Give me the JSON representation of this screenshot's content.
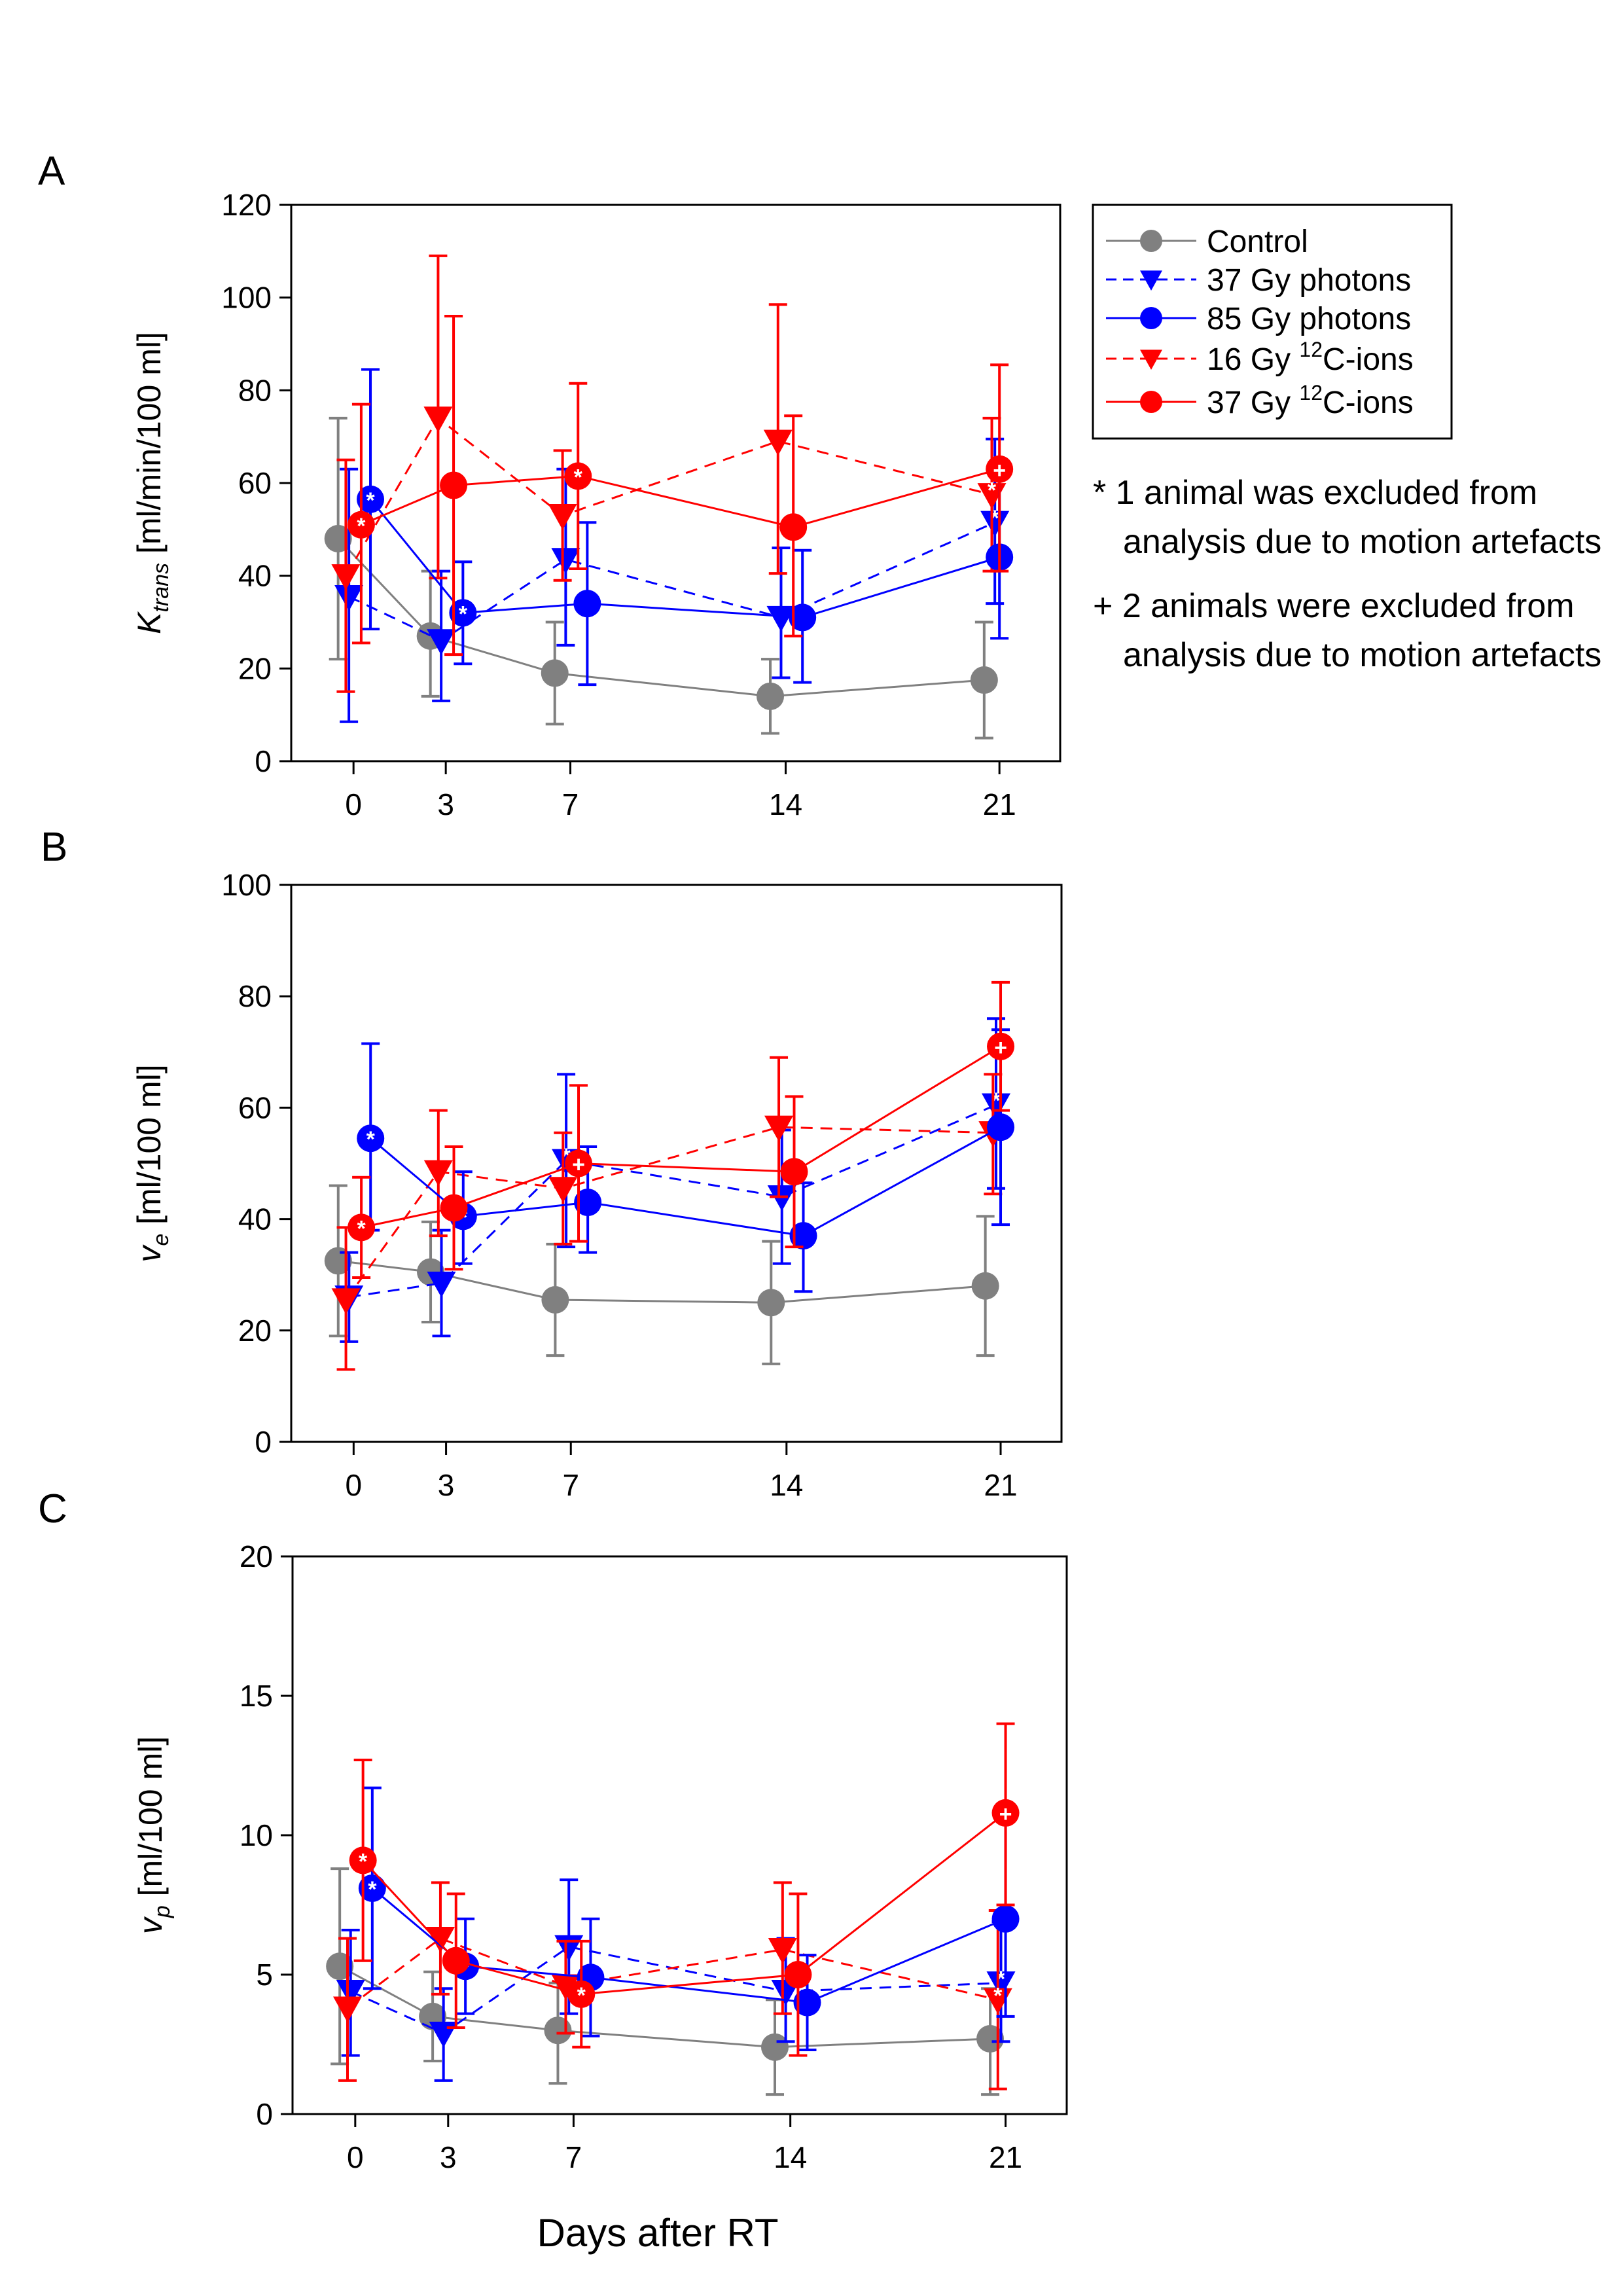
{
  "chart_data": [
    {
      "type": "line",
      "panel_label": "A",
      "ylabel_main": "K",
      "ylabel_sub": "trans",
      "ylabel_rest": "[ml/min/100 ml]",
      "ylim": [
        0,
        120
      ],
      "yticks": [
        "0",
        "20",
        "40",
        "60",
        "80",
        "100",
        "120"
      ],
      "x": [
        0,
        3,
        7,
        14,
        21
      ],
      "xticks": [
        "0",
        "3",
        "7",
        "14",
        "21"
      ],
      "series": [
        {
          "name": "Control",
          "offset": -0.5,
          "values": [
            48,
            27,
            19,
            14,
            17.5
          ],
          "err_high": [
            74,
            41,
            30,
            22,
            30
          ],
          "err_low": [
            22,
            14,
            8,
            6,
            5
          ],
          "marks": [
            "",
            "",
            "",
            "",
            ""
          ]
        },
        {
          "name": "37 Gy photons",
          "offset": -0.15,
          "values": [
            35.5,
            26,
            43.5,
            31,
            51.5
          ],
          "err_high": [
            63,
            41,
            63,
            46,
            69.5
          ],
          "err_low": [
            8.5,
            13,
            25,
            18,
            34
          ],
          "marks": [
            "",
            "",
            "",
            "",
            "*"
          ]
        },
        {
          "name": "85 Gy photons",
          "offset": 0.55,
          "values": [
            56.5,
            32,
            34,
            31,
            44
          ],
          "err_high": [
            84.5,
            43,
            51.5,
            45.5,
            62
          ],
          "err_low": [
            28.5,
            21,
            16.5,
            17,
            26.5
          ],
          "marks": [
            "*",
            "*",
            "",
            "",
            ""
          ]
        },
        {
          "name": "16 Gy 12C-ions",
          "offset": -0.25,
          "values": [
            40,
            74,
            53,
            69,
            57.5
          ],
          "err_high": [
            65,
            109,
            67,
            98.5,
            74
          ],
          "err_low": [
            15,
            39.5,
            39,
            40.5,
            41
          ],
          "marks": [
            "",
            "",
            "",
            "",
            "*"
          ]
        },
        {
          "name": "37 Gy 12C-ions",
          "offset": 0.25,
          "values": [
            51,
            59.5,
            61.5,
            50.5,
            63
          ],
          "err_high": [
            77,
            96,
            81.5,
            74.5,
            85.5
          ],
          "err_low": [
            25.5,
            23,
            41.5,
            27,
            41
          ],
          "marks": [
            "*",
            "",
            "*",
            "",
            "+"
          ]
        }
      ]
    },
    {
      "type": "line",
      "panel_label": "B",
      "ylabel_main": "v",
      "ylabel_sub": "e",
      "ylabel_rest": "[ml/100 ml]",
      "ylim": [
        0,
        100
      ],
      "yticks": [
        "0",
        "20",
        "40",
        "60",
        "80",
        "100"
      ],
      "x": [
        0,
        3,
        7,
        14,
        21
      ],
      "xticks": [
        "0",
        "3",
        "7",
        "14",
        "21"
      ],
      "series": [
        {
          "name": "Control",
          "offset": -0.5,
          "values": [
            32.5,
            30.5,
            25.5,
            25,
            28
          ],
          "err_high": [
            46,
            39.5,
            35.5,
            36,
            40.5
          ],
          "err_low": [
            19,
            21.5,
            15.5,
            14,
            15.5
          ],
          "marks": [
            "",
            "",
            "",
            "",
            ""
          ]
        },
        {
          "name": "37 Gy photons",
          "offset": -0.15,
          "values": [
            26,
            28.5,
            50.5,
            44,
            60.5
          ],
          "err_high": [
            34,
            38,
            66,
            56,
            76
          ],
          "err_low": [
            18,
            19,
            35,
            32,
            45.5
          ],
          "marks": [
            "",
            "",
            "*",
            "",
            "*"
          ]
        },
        {
          "name": "85 Gy photons",
          "offset": 0.55,
          "values": [
            54.5,
            40.5,
            43,
            37,
            56.5
          ],
          "err_high": [
            71.5,
            48.5,
            53,
            46.5,
            74
          ],
          "err_low": [
            38,
            32,
            34,
            27,
            39
          ],
          "marks": [
            "*",
            "*",
            "",
            "",
            ""
          ]
        },
        {
          "name": "16 Gy 12C-ions",
          "offset": -0.25,
          "values": [
            25.5,
            48.5,
            45.5,
            56.5,
            55.5
          ],
          "err_high": [
            38.5,
            59.5,
            55.5,
            69,
            66
          ],
          "err_low": [
            13,
            37,
            35.5,
            44,
            44.5
          ],
          "marks": [
            "",
            "",
            "",
            "",
            "*"
          ]
        },
        {
          "name": "37 Gy 12C-ions",
          "offset": 0.25,
          "values": [
            38.5,
            42,
            50,
            48.5,
            71
          ],
          "err_high": [
            47.5,
            53,
            64,
            62,
            82.5
          ],
          "err_low": [
            29.5,
            31,
            36,
            35,
            59.5
          ],
          "marks": [
            "*",
            "",
            "+",
            "",
            "+"
          ]
        }
      ]
    },
    {
      "type": "line",
      "panel_label": "C",
      "ylabel_main": "v",
      "ylabel_sub": "p",
      "ylabel_rest": "[ml/100 ml]",
      "ylim": [
        0,
        20
      ],
      "yticks": [
        "0",
        "5",
        "10",
        "15",
        "20"
      ],
      "x": [
        0,
        3,
        7,
        14,
        21
      ],
      "xticks": [
        "0",
        "3",
        "7",
        "14",
        "21"
      ],
      "series": [
        {
          "name": "Control",
          "offset": -0.5,
          "values": [
            5.3,
            3.5,
            3.0,
            2.4,
            2.7
          ],
          "err_high": [
            8.8,
            5.1,
            4.7,
            4.1,
            4.5
          ],
          "err_low": [
            1.8,
            1.9,
            1.1,
            0.7,
            0.7
          ],
          "marks": [
            "",
            "",
            "",
            "",
            ""
          ]
        },
        {
          "name": "37 Gy photons",
          "offset": -0.15,
          "values": [
            4.4,
            2.9,
            6.0,
            4.4,
            4.7
          ],
          "err_high": [
            6.6,
            4.5,
            8.4,
            6.3,
            6.9
          ],
          "err_low": [
            2.1,
            1.2,
            3.6,
            2.6,
            2.6
          ],
          "marks": [
            "",
            "",
            "",
            "",
            "*"
          ]
        },
        {
          "name": "85 Gy photons",
          "offset": 0.55,
          "values": [
            8.1,
            5.3,
            4.9,
            4.0,
            7.0
          ],
          "err_high": [
            11.7,
            7.0,
            7.0,
            5.7,
            10.6
          ],
          "err_low": [
            4.5,
            3.6,
            2.8,
            2.3,
            3.5
          ],
          "marks": [
            "*",
            "*",
            "",
            "",
            ""
          ]
        },
        {
          "name": "16 Gy 12C-ions",
          "offset": -0.25,
          "values": [
            3.8,
            6.3,
            4.6,
            5.9,
            4.1
          ],
          "err_high": [
            6.3,
            8.3,
            6.2,
            8.3,
            7.3
          ],
          "err_low": [
            1.2,
            4.3,
            2.9,
            3.6,
            0.9
          ],
          "marks": [
            "",
            "",
            "",
            "",
            "*"
          ]
        },
        {
          "name": "37 Gy 12C-ions",
          "offset": 0.25,
          "values": [
            9.1,
            5.5,
            4.3,
            5.0,
            10.8
          ],
          "err_high": [
            12.7,
            7.9,
            6.2,
            7.9,
            14.0
          ],
          "err_low": [
            5.5,
            3.1,
            2.4,
            2.1,
            7.5
          ],
          "marks": [
            "*",
            "",
            "*",
            "",
            "+"
          ]
        }
      ]
    }
  ],
  "xlabel": "Days after RT",
  "legend": {
    "items": [
      {
        "name": "Control",
        "label": "Control",
        "color": "#808080",
        "marker": "circle",
        "dash": "solid"
      },
      {
        "name": "37 Gy photons",
        "label": "37 Gy photons",
        "color": "#0000ff",
        "marker": "triangle-down",
        "dash": "dashed"
      },
      {
        "name": "85 Gy photons",
        "label": "85 Gy photons",
        "color": "#0000ff",
        "marker": "circle",
        "dash": "solid"
      },
      {
        "name": "16 Gy 12C-ions",
        "label_pre": "16 Gy ",
        "label_sup": "12",
        "label_post": "C-ions",
        "color": "#ff0000",
        "marker": "triangle-down",
        "dash": "dashed"
      },
      {
        "name": "37 Gy 12C-ions",
        "label_pre": "37 Gy ",
        "label_sup": "12",
        "label_post": "C-ions",
        "color": "#ff0000",
        "marker": "circle",
        "dash": "solid"
      }
    ]
  },
  "notes": {
    "note1_line1": "* 1 animal was excluded from",
    "note1_line2": "analysis due to motion artefacts",
    "note2_line1": "+ 2 animals were excluded from",
    "note2_line2": "analysis due to motion artefacts"
  }
}
